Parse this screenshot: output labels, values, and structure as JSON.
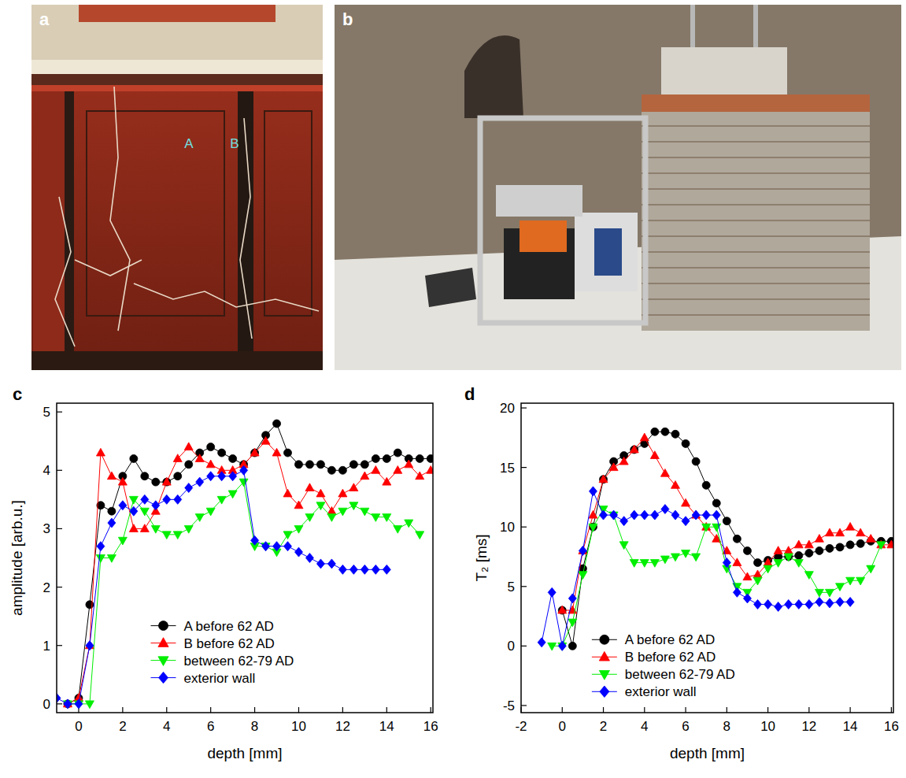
{
  "panel_letters": [
    "a",
    "b",
    "c",
    "d"
  ],
  "photo_a_labels": [
    "A",
    "B"
  ],
  "chart_data": [
    {
      "type": "line",
      "x_label": "depth [mm]",
      "y_label": "amplitude [arb.u.]",
      "x": [
        -1,
        -0.5,
        0,
        0.5,
        1,
        1.5,
        2,
        2.5,
        3,
        3.5,
        4,
        4.5,
        5,
        5.5,
        6,
        6.5,
        7,
        7.5,
        8,
        8.5,
        9,
        9.5,
        10,
        10.5,
        11,
        11.5,
        12,
        12.5,
        13,
        13.5,
        14,
        14.5,
        15,
        15.5,
        16
      ],
      "xlim": [
        -1,
        16.1
      ],
      "xticks": [
        0,
        2,
        4,
        6,
        8,
        10,
        12,
        14,
        16
      ],
      "ylim": [
        -0.15,
        5.15
      ],
      "yticks": [
        0,
        1,
        2,
        3,
        4,
        5
      ],
      "legend": "lower center",
      "series": [
        {
          "name": "A before 62 AD",
          "color": "#000000",
          "marker": "circle",
          "line_style": "solid",
          "values": [
            null,
            0,
            0.1,
            1.7,
            3.4,
            3.3,
            3.9,
            4.2,
            3.9,
            3.8,
            3.8,
            3.9,
            4.1,
            4.3,
            4.4,
            4.3,
            4.2,
            4.1,
            4.3,
            4.6,
            4.8,
            4.3,
            4.1,
            4.1,
            4.1,
            4.0,
            4.0,
            4.1,
            4.1,
            4.2,
            4.2,
            4.3,
            4.2,
            4.2,
            4.2
          ]
        },
        {
          "name": "B before 62 AD",
          "color": "#ff0000",
          "marker": "triangle-up",
          "line_style": "solid",
          "values": [
            null,
            0,
            0.1,
            1.0,
            4.3,
            3.9,
            3.8,
            3.0,
            3.0,
            3.3,
            3.8,
            4.2,
            4.4,
            4.2,
            4.1,
            4.0,
            4.0,
            4.1,
            4.3,
            4.5,
            4.3,
            3.6,
            3.4,
            3.7,
            3.6,
            3.3,
            3.6,
            3.7,
            3.9,
            4.0,
            3.8,
            4.0,
            4.1,
            3.9,
            4.0
          ]
        },
        {
          "name": "between 62-79 AD",
          "color": "#00ee00",
          "marker": "triangle-down",
          "line_style": "solid",
          "values": [
            null,
            0,
            0,
            0,
            2.5,
            2.5,
            2.8,
            3.5,
            3.3,
            3.0,
            2.9,
            2.9,
            3.0,
            3.2,
            3.3,
            3.5,
            3.6,
            3.8,
            2.7,
            2.7,
            2.6,
            2.9,
            3.0,
            3.2,
            3.4,
            3.2,
            3.3,
            3.4,
            3.3,
            3.2,
            3.2,
            3.0,
            3.1,
            2.9,
            null
          ]
        },
        {
          "name": "exterior wall",
          "color": "#0000ff",
          "marker": "diamond",
          "line_style": "solid",
          "values": [
            0.1,
            0,
            0,
            1.0,
            2.7,
            3.1,
            3.4,
            3.3,
            3.5,
            3.4,
            3.5,
            3.5,
            3.7,
            3.8,
            3.9,
            3.9,
            3.9,
            4.0,
            2.8,
            2.7,
            2.7,
            2.7,
            2.6,
            2.5,
            2.4,
            2.4,
            2.3,
            2.3,
            2.3,
            2.3,
            2.3,
            null,
            null,
            null,
            null
          ]
        }
      ]
    },
    {
      "type": "line",
      "x_label": "depth [mm]",
      "y_label": "T₂ [ms]",
      "x": [
        -1,
        -0.5,
        0,
        0.5,
        1,
        1.5,
        2,
        2.5,
        3,
        3.5,
        4,
        4.5,
        5,
        5.5,
        6,
        6.5,
        7,
        7.5,
        8,
        8.5,
        9,
        9.5,
        10,
        10.5,
        11,
        11.5,
        12,
        12.5,
        13,
        13.5,
        14,
        14.5,
        15,
        15.5,
        16
      ],
      "xlim": [
        -2,
        16.1
      ],
      "xticks": [
        -2,
        0,
        2,
        4,
        6,
        8,
        10,
        12,
        14,
        16
      ],
      "ylim": [
        -5.6,
        20.4
      ],
      "yticks": [
        -5,
        0,
        5,
        10,
        15,
        20
      ],
      "legend": "lower left",
      "series": [
        {
          "name": "A before 62 AD",
          "color": "#000000",
          "marker": "circle",
          "line_style": "solid",
          "values": [
            null,
            null,
            3,
            0,
            6.5,
            10,
            14,
            15.5,
            16,
            16.5,
            17,
            18,
            18,
            17.8,
            17,
            15.5,
            13.5,
            12,
            10.5,
            9,
            8,
            7,
            7.2,
            7.5,
            7.5,
            7.6,
            7.8,
            8,
            8.2,
            8.3,
            8.5,
            8.6,
            8.8,
            8.8,
            8.8
          ]
        },
        {
          "name": "B before 62 AD",
          "color": "#ff0000",
          "marker": "triangle-up",
          "line_style": "solid",
          "values": [
            null,
            null,
            3,
            3,
            8,
            11,
            14,
            15,
            15.5,
            16.5,
            17.5,
            16,
            14.5,
            13.5,
            12,
            11,
            10,
            9,
            8,
            7,
            5.8,
            6,
            7,
            8,
            8,
            8.5,
            8.5,
            9,
            9.5,
            9.5,
            10,
            9.5,
            9,
            8.5,
            8.5
          ]
        },
        {
          "name": "between 62-79 AD",
          "color": "#00ee00",
          "marker": "triangle-down",
          "line_style": "solid",
          "values": [
            null,
            0,
            0,
            2,
            6,
            10,
            11.5,
            11,
            8.5,
            7,
            7,
            7,
            7.3,
            7.5,
            7.8,
            7.5,
            10,
            10,
            6.5,
            5,
            4.5,
            5.5,
            6.5,
            7,
            7.5,
            7,
            6,
            4.5,
            4.5,
            5,
            5.5,
            5.5,
            6.5,
            8.5,
            null
          ]
        },
        {
          "name": "exterior wall",
          "color": "#0000ff",
          "marker": "diamond",
          "line_style": "solid",
          "values": [
            0.3,
            4.5,
            0,
            4,
            8,
            13,
            11,
            11,
            10.5,
            11,
            11,
            11,
            11.5,
            11,
            10.5,
            11,
            11,
            11,
            7,
            4.5,
            4,
            3.5,
            3.5,
            3.3,
            3.5,
            3.5,
            3.5,
            3.7,
            3.6,
            3.7,
            3.7,
            null,
            null,
            null,
            null
          ]
        }
      ]
    }
  ]
}
